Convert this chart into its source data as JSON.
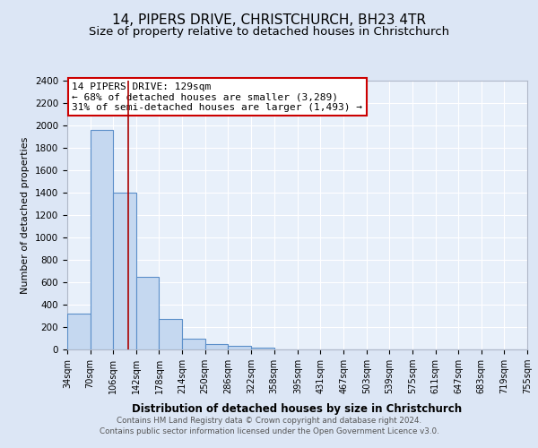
{
  "title1": "14, PIPERS DRIVE, CHRISTCHURCH, BH23 4TR",
  "title2": "Size of property relative to detached houses in Christchurch",
  "xlabel": "Distribution of detached houses by size in Christchurch",
  "ylabel": "Number of detached properties",
  "bin_labels": [
    "34sqm",
    "70sqm",
    "106sqm",
    "142sqm",
    "178sqm",
    "214sqm",
    "250sqm",
    "286sqm",
    "322sqm",
    "358sqm",
    "395sqm",
    "431sqm",
    "467sqm",
    "503sqm",
    "539sqm",
    "575sqm",
    "611sqm",
    "647sqm",
    "683sqm",
    "719sqm",
    "755sqm"
  ],
  "bin_values": [
    320,
    1960,
    1400,
    650,
    275,
    100,
    50,
    30,
    20,
    0,
    0,
    0,
    0,
    0,
    0,
    0,
    0,
    0,
    0,
    0
  ],
  "bar_color": "#c5d8f0",
  "bar_edge_color": "#5b8fc9",
  "property_line_x": 129,
  "bin_edges": [
    34,
    70,
    106,
    142,
    178,
    214,
    250,
    286,
    322,
    358,
    395,
    431,
    467,
    503,
    539,
    575,
    611,
    647,
    683,
    719,
    755
  ],
  "vline_color": "#aa0000",
  "annotation_box_color": "#cc0000",
  "annotation_line1": "14 PIPERS DRIVE: 129sqm",
  "annotation_line2": "← 68% of detached houses are smaller (3,289)",
  "annotation_line3": "31% of semi-detached houses are larger (1,493) →",
  "ylim": [
    0,
    2400
  ],
  "yticks": [
    0,
    200,
    400,
    600,
    800,
    1000,
    1200,
    1400,
    1600,
    1800,
    2000,
    2200,
    2400
  ],
  "background_color": "#dce6f5",
  "plot_bg_color": "#e8f0fa",
  "footer1": "Contains HM Land Registry data © Crown copyright and database right 2024.",
  "footer2": "Contains public sector information licensed under the Open Government Licence v3.0.",
  "title_fontsize": 11,
  "subtitle_fontsize": 9.5,
  "grid_color": "#ffffff"
}
